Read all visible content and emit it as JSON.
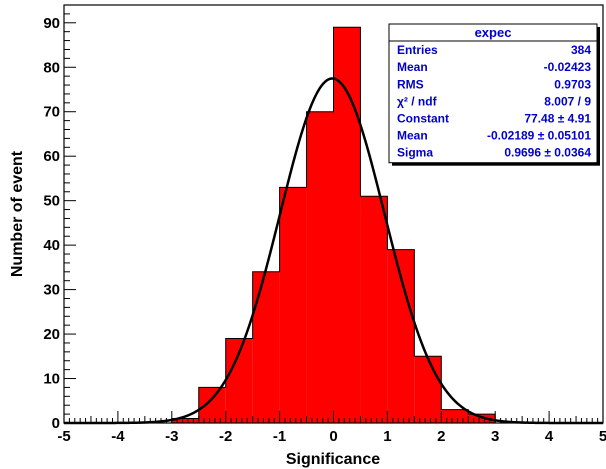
{
  "chart_data": {
    "type": "bar",
    "histogram_name": "expec",
    "xlabel": "Significance",
    "ylabel": "Number of event",
    "xlim": [
      -5,
      5
    ],
    "ylim": [
      0,
      94
    ],
    "x_ticks": [
      -5,
      -4,
      -3,
      -2,
      -1,
      0,
      1,
      2,
      3,
      4,
      5
    ],
    "y_ticks": [
      0,
      10,
      20,
      30,
      40,
      50,
      60,
      70,
      80,
      90
    ],
    "bin_width": 0.5,
    "bins": [
      {
        "x_low": -3.0,
        "x_high": -2.5,
        "value": 1
      },
      {
        "x_low": -2.5,
        "x_high": -2.0,
        "value": 8
      },
      {
        "x_low": -2.0,
        "x_high": -1.5,
        "value": 19
      },
      {
        "x_low": -1.5,
        "x_high": -1.0,
        "value": 34
      },
      {
        "x_low": -1.0,
        "x_high": -0.5,
        "value": 53
      },
      {
        "x_low": -0.5,
        "x_high": 0.0,
        "value": 70
      },
      {
        "x_low": 0.0,
        "x_high": 0.5,
        "value": 89
      },
      {
        "x_low": 0.5,
        "x_high": 1.0,
        "value": 51
      },
      {
        "x_low": 1.0,
        "x_high": 1.5,
        "value": 39
      },
      {
        "x_low": 1.5,
        "x_high": 2.0,
        "value": 15
      },
      {
        "x_low": 2.0,
        "x_high": 2.5,
        "value": 3
      },
      {
        "x_low": 2.5,
        "x_high": 3.0,
        "value": 2
      }
    ],
    "fit": {
      "type": "gaus",
      "constant": 77.48,
      "mean": -0.02189,
      "sigma": 0.9696
    },
    "bar_color": "#ff0000",
    "fit_color": "#000000",
    "legend_position": "top-right",
    "stats_box": {
      "title": "expec",
      "rows": [
        {
          "label": "Entries",
          "value": "384"
        },
        {
          "label": "Mean",
          "value": "-0.02423"
        },
        {
          "label": "RMS",
          "value": "0.9703"
        },
        {
          "label": "χ² / ndf",
          "value": "8.007 / 9"
        },
        {
          "label": "Constant",
          "value": "77.48 ± 4.91"
        },
        {
          "label": "Mean",
          "value": "-0.02189 ± 0.05101"
        },
        {
          "label": "Sigma",
          "value": "0.9696 ± 0.0364"
        }
      ]
    }
  }
}
